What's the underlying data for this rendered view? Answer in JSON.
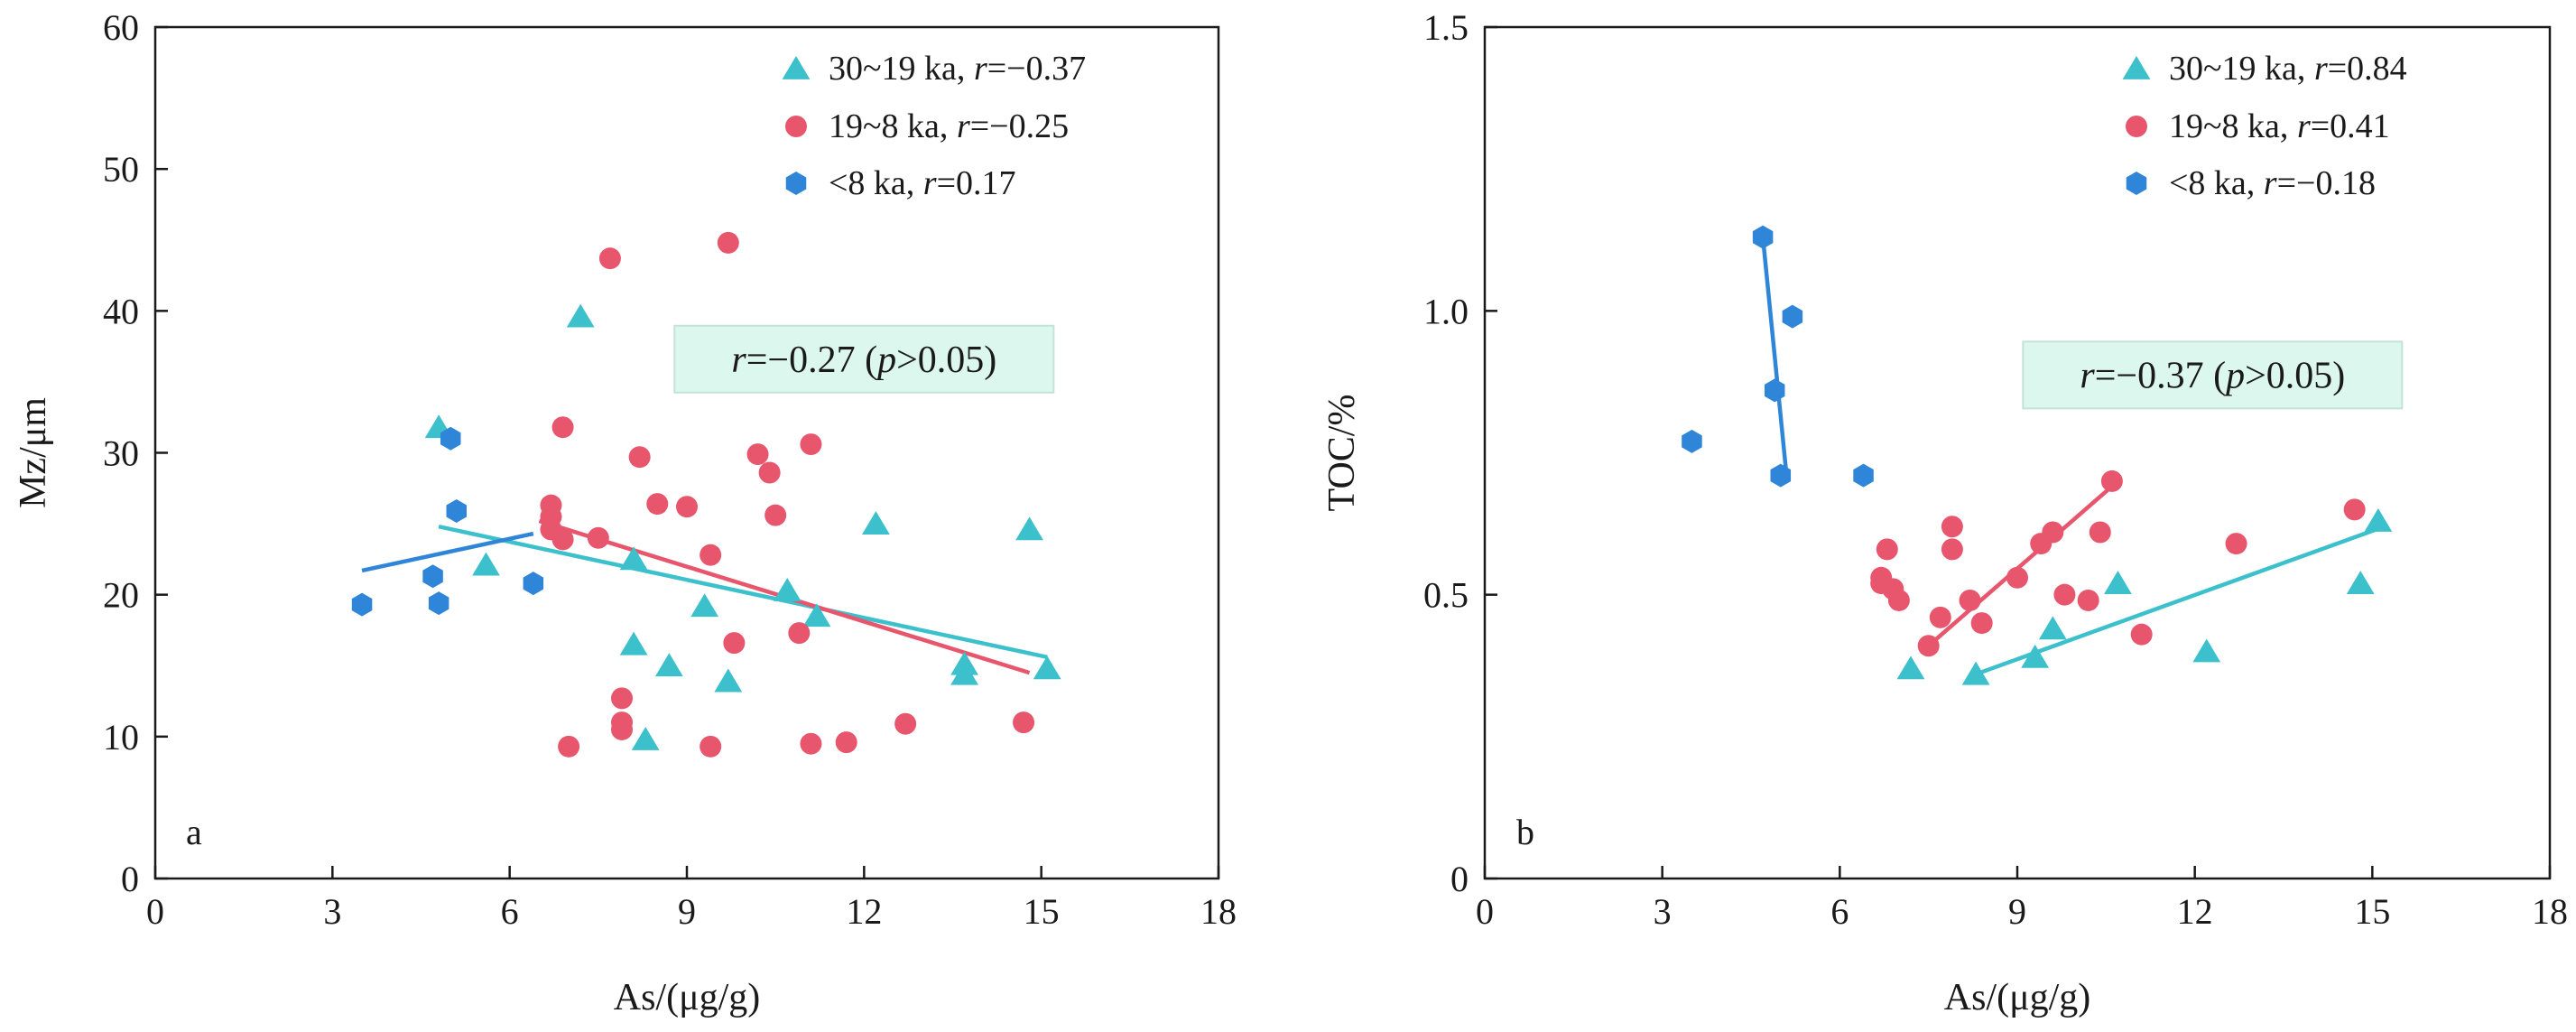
{
  "chart_data": [
    {
      "type": "scatter",
      "panel_label": "a",
      "xlabel": "As/(μg/g)",
      "ylabel": "Mz/μm",
      "xlim": [
        0,
        18
      ],
      "ylim": [
        0,
        60
      ],
      "xticks": [
        0,
        3,
        6,
        9,
        12,
        15,
        18
      ],
      "yticks": [
        0,
        10,
        20,
        30,
        40,
        50,
        60
      ],
      "xtick_labels": [
        "0",
        "3",
        "6",
        "9",
        "12",
        "15",
        "18"
      ],
      "ytick_labels": [
        "0",
        "10",
        "20",
        "30",
        "40",
        "50",
        "60"
      ],
      "legend_position": "top-right",
      "annotation": {
        "r_label": "r",
        "text": "=−0.27 (",
        "p_label": "p",
        "text2": ">0.05)",
        "x": 12.0,
        "y": 36.6
      },
      "series": [
        {
          "name": "30~19 ka, ",
          "r_label": "r",
          "r_text": "=−0.37",
          "marker": "triangle",
          "color": "#3BC0CC",
          "x": [
            4.8,
            5.6,
            7.2,
            8.1,
            8.1,
            8.3,
            8.7,
            9.3,
            9.7,
            10.7,
            11.2,
            12.2,
            13.7,
            13.7,
            14.8,
            15.1
          ],
          "y": [
            31.8,
            22.1,
            39.6,
            22.5,
            16.5,
            9.8,
            15.0,
            19.2,
            13.9,
            20.3,
            18.5,
            25.0,
            14.4,
            15.1,
            24.6,
            14.8
          ],
          "fit": {
            "x": [
              4.8,
              15.1
            ],
            "y": [
              24.8,
              15.6
            ]
          }
        },
        {
          "name": "19~8 ka, ",
          "r_label": "r",
          "r_text": "=−0.25",
          "marker": "circle",
          "color": "#E7566C",
          "x": [
            6.7,
            6.7,
            6.7,
            6.9,
            6.9,
            7.0,
            7.5,
            7.7,
            7.9,
            7.9,
            7.9,
            8.2,
            8.5,
            9.0,
            9.4,
            9.4,
            9.7,
            9.8,
            10.2,
            10.4,
            10.5,
            10.9,
            11.1,
            11.1,
            11.7,
            12.7,
            14.7
          ],
          "y": [
            26.3,
            25.5,
            24.6,
            23.9,
            31.8,
            9.3,
            24.0,
            43.7,
            12.7,
            11.0,
            10.5,
            29.7,
            26.4,
            26.2,
            22.8,
            9.3,
            44.8,
            16.6,
            29.9,
            28.6,
            25.6,
            17.3,
            30.6,
            9.5,
            9.6,
            10.9,
            11.0
          ],
          "fit": {
            "x": [
              6.5,
              14.8
            ],
            "y": [
              25.2,
              14.5
            ]
          }
        },
        {
          "name": "<8 ka, ",
          "r_label": "r",
          "r_text": "=0.17",
          "marker": "hexagon",
          "color": "#2F86D8",
          "x": [
            3.5,
            4.7,
            4.8,
            5.0,
            5.1,
            6.4
          ],
          "y": [
            19.3,
            21.3,
            19.4,
            31.0,
            25.9,
            20.8
          ],
          "fit": {
            "x": [
              3.5,
              6.4
            ],
            "y": [
              21.7,
              24.3
            ]
          }
        }
      ]
    },
    {
      "type": "scatter",
      "panel_label": "b",
      "xlabel": "As/(μg/g)",
      "ylabel": "TOC/%",
      "xlim": [
        0,
        18
      ],
      "ylim": [
        0,
        1.5
      ],
      "xticks": [
        0,
        3,
        6,
        9,
        12,
        15,
        18
      ],
      "yticks": [
        0,
        0.5,
        1.0,
        1.5
      ],
      "xtick_labels": [
        "0",
        "3",
        "6",
        "9",
        "12",
        "15",
        "18"
      ],
      "ytick_labels": [
        "0",
        "0.5",
        "1.0",
        "1.5"
      ],
      "legend_position": "top-right",
      "annotation": {
        "r_label": "r",
        "text": "=−0.37 (",
        "p_label": "p",
        "text2": ">0.05)",
        "x": 12.3,
        "y": 0.887
      },
      "series": [
        {
          "name": "30~19 ka, ",
          "r_label": "r",
          "r_text": "=0.84",
          "marker": "triangle",
          "color": "#3BC0CC",
          "x": [
            7.2,
            8.3,
            9.3,
            9.6,
            10.7,
            12.2,
            14.8,
            15.1
          ],
          "y": [
            0.37,
            0.36,
            0.39,
            0.44,
            0.52,
            0.4,
            0.52,
            0.63
          ],
          "fit": {
            "x": [
              8.3,
              15.2
            ],
            "y": [
              0.36,
              0.62
            ]
          }
        },
        {
          "name": "19~8 ka, ",
          "r_label": "r",
          "r_text": "=0.41",
          "marker": "circle",
          "color": "#E7566C",
          "x": [
            6.7,
            6.7,
            6.8,
            6.9,
            7.0,
            7.5,
            7.7,
            7.9,
            7.9,
            8.2,
            8.4,
            9.0,
            9.4,
            9.6,
            9.8,
            10.2,
            10.4,
            10.6,
            11.1,
            12.7,
            14.7
          ],
          "y": [
            0.53,
            0.52,
            0.58,
            0.51,
            0.49,
            0.41,
            0.46,
            0.62,
            0.58,
            0.49,
            0.45,
            0.53,
            0.59,
            0.61,
            0.5,
            0.49,
            0.61,
            0.7,
            0.43,
            0.59,
            0.65
          ],
          "fit": {
            "x": [
              7.5,
              10.7
            ],
            "y": [
              0.41,
              0.7
            ]
          }
        },
        {
          "name": "<8 ka, ",
          "r_label": "r",
          "r_text": "=−0.18",
          "marker": "hexagon",
          "color": "#2F86D8",
          "x": [
            3.5,
            4.7,
            4.9,
            5.0,
            5.2,
            6.4
          ],
          "y": [
            0.77,
            1.13,
            0.86,
            0.71,
            0.99,
            0.71
          ],
          "fit": {
            "x": [
              4.7,
              5.1
            ],
            "y": [
              1.13,
              0.71
            ]
          }
        }
      ]
    }
  ]
}
